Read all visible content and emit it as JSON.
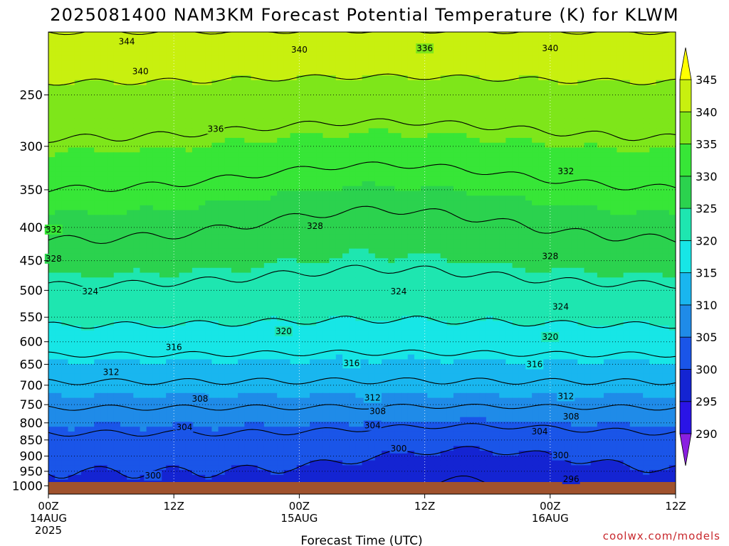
{
  "chart_data": {
    "type": "heatmap",
    "title": "2025081400 NAM3KM Forecast Potential Temperature (K) for KLWM",
    "xlabel": "Forecast Time (UTC)",
    "ylabel": "",
    "credit": "coolwx.com/models",
    "x_range_hours": [
      0,
      60
    ],
    "x_ticks": [
      {
        "hour": 0,
        "lines": [
          "00Z",
          "14AUG",
          "2025"
        ]
      },
      {
        "hour": 12,
        "lines": [
          "12Z"
        ]
      },
      {
        "hour": 24,
        "lines": [
          "00Z",
          "15AUG"
        ]
      },
      {
        "hour": 36,
        "lines": [
          "12Z"
        ]
      },
      {
        "hour": 48,
        "lines": [
          "00Z",
          "16AUG"
        ]
      },
      {
        "hour": 60,
        "lines": [
          "12Z"
        ]
      }
    ],
    "y_axis": {
      "scale": "log",
      "reversed": true,
      "range_hpa": [
        1030,
        200
      ],
      "ticks": [
        250,
        300,
        350,
        400,
        450,
        500,
        550,
        600,
        650,
        700,
        750,
        800,
        850,
        900,
        950,
        1000
      ]
    },
    "grid": true,
    "colorbar": {
      "levels": [
        290,
        295,
        300,
        305,
        310,
        315,
        320,
        325,
        330,
        335,
        340,
        345
      ],
      "colors": [
        "#8a1fe0",
        "#2a14e6",
        "#1424d2",
        "#1a55e8",
        "#1f8be8",
        "#19b6ef",
        "#17e6e6",
        "#1ee6b0",
        "#2bd24e",
        "#37e637",
        "#7ee61a",
        "#c8f00f",
        "#ffff00"
      ],
      "placement": "right"
    },
    "ground_color": "#a0522d",
    "contours": [
      {
        "level": 344,
        "labels": [
          [
            7.5,
            207
          ]
        ]
      },
      {
        "level": 340,
        "labels": [
          [
            8.8,
            230
          ],
          [
            24,
            213
          ],
          [
            48,
            212
          ]
        ]
      },
      {
        "level": 336,
        "labels": [
          [
            16,
            282
          ],
          [
            36,
            212
          ]
        ]
      },
      {
        "level": 332,
        "labels": [
          [
            0.5,
            403
          ],
          [
            49.5,
            328
          ]
        ]
      },
      {
        "level": 328,
        "labels": [
          [
            0.5,
            447
          ],
          [
            25.5,
            398
          ],
          [
            48,
            443
          ]
        ]
      },
      {
        "level": 324,
        "labels": [
          [
            4,
            502
          ],
          [
            33.5,
            502
          ],
          [
            49,
            530
          ]
        ]
      },
      {
        "level": 320,
        "labels": [
          [
            22.5,
            578
          ],
          [
            48,
            590
          ]
        ]
      },
      {
        "level": 316,
        "labels": [
          [
            12,
            612
          ],
          [
            29,
            648
          ],
          [
            46.5,
            650
          ]
        ]
      },
      {
        "level": 312,
        "labels": [
          [
            6,
            668
          ],
          [
            31,
            732
          ],
          [
            49.5,
            728
          ]
        ]
      },
      {
        "level": 308,
        "labels": [
          [
            14.5,
            735
          ],
          [
            31.5,
            768
          ],
          [
            50,
            782
          ]
        ]
      },
      {
        "level": 304,
        "labels": [
          [
            13,
            813
          ],
          [
            31,
            808
          ],
          [
            47,
            825
          ]
        ]
      },
      {
        "level": 300,
        "labels": [
          [
            10,
            965
          ],
          [
            33.5,
            876
          ],
          [
            49,
            898
          ]
        ]
      },
      {
        "level": 296,
        "labels": [
          [
            50,
            977
          ]
        ]
      }
    ],
    "theta_model": {
      "surface_base_k": 299,
      "profile_hpa": [
        1000,
        950,
        900,
        850,
        800,
        750,
        700,
        650,
        600,
        550,
        500,
        450,
        400,
        350,
        300,
        250,
        200
      ],
      "profile_k": [
        299,
        300,
        301.5,
        303,
        305.5,
        308.5,
        311.5,
        314.5,
        318,
        321,
        323.5,
        326.5,
        329,
        332,
        335.5,
        339,
        344
      ],
      "mid_peak": [
        {
          "hour": 32,
          "width": 16,
          "hpa_top": 270,
          "k": 4
        }
      ],
      "low_cool": [
        {
          "hour": 40,
          "width": 12,
          "k": -4
        }
      ]
    }
  }
}
